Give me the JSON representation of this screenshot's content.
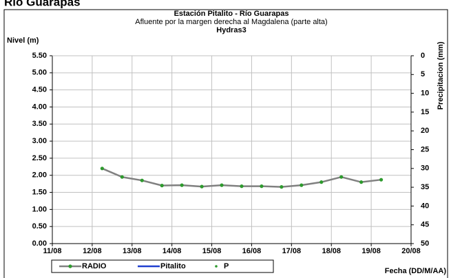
{
  "page_title": "Río Guarapas",
  "chart_data": {
    "type": "line",
    "title": "Estación Pitalito  - Río Guarapas",
    "subtitle": "Afluente por la margen derecha al Magdalena (parte alta)",
    "source": "Hydras3",
    "ylabel": "Nivel (m)",
    "y2label": "Precipitacion (mm)",
    "xlabel": "Fecha (DD/M/AA)",
    "x": [
      1.25,
      1.75,
      2.25,
      2.75,
      3.25,
      3.75,
      4.25,
      4.75,
      5.25,
      5.75,
      6.25,
      6.75,
      7.25,
      7.75,
      8.25
    ],
    "series": [
      {
        "name": "RADIO",
        "color": "#808080",
        "marker_color": "#2e9a2e",
        "values": [
          2.2,
          1.95,
          1.85,
          1.7,
          1.71,
          1.67,
          1.71,
          1.68,
          1.68,
          1.66,
          1.71,
          1.8,
          1.95,
          1.8,
          1.87
        ]
      },
      {
        "name": "Pitalito",
        "color": "#1f3fd0",
        "values": [
          null,
          null,
          null,
          null,
          null,
          null,
          null,
          null,
          null,
          null,
          null,
          null,
          null,
          null,
          null
        ]
      },
      {
        "name": "P",
        "color": "#2e9a2e",
        "axis": "y2",
        "style": "points",
        "values": [
          null,
          null,
          null,
          null,
          null,
          null,
          null,
          null,
          null,
          null,
          null,
          null,
          null,
          null,
          null
        ]
      }
    ],
    "xlim": [
      0,
      9
    ],
    "xticks": [
      {
        "value": 0,
        "label": "11/08"
      },
      {
        "value": 1,
        "label": "12/08"
      },
      {
        "value": 2,
        "label": "13/08"
      },
      {
        "value": 3,
        "label": "14/08"
      },
      {
        "value": 4,
        "label": "15/08"
      },
      {
        "value": 5,
        "label": "16/08"
      },
      {
        "value": 6,
        "label": "17/08"
      },
      {
        "value": 7,
        "label": "18/08"
      },
      {
        "value": 8,
        "label": "19/08"
      },
      {
        "value": 9,
        "label": "20/08"
      }
    ],
    "ylim": [
      0,
      5.5
    ],
    "yticks": [
      {
        "value": 0,
        "label": "0.00"
      },
      {
        "value": 0.5,
        "label": "0.50"
      },
      {
        "value": 1,
        "label": "1.00"
      },
      {
        "value": 1.5,
        "label": "1.50"
      },
      {
        "value": 2,
        "label": "2.00"
      },
      {
        "value": 2.5,
        "label": "2.50"
      },
      {
        "value": 3,
        "label": "3.00"
      },
      {
        "value": 3.5,
        "label": "3.50"
      },
      {
        "value": 4,
        "label": "4.00"
      },
      {
        "value": 4.5,
        "label": "4.50"
      },
      {
        "value": 5,
        "label": "5.00"
      },
      {
        "value": 5.5,
        "label": "5.50"
      }
    ],
    "y2lim": [
      0,
      50
    ],
    "y2_inverted": true,
    "y2ticks": [
      0,
      5,
      10,
      15,
      20,
      25,
      30,
      35,
      40,
      45,
      50
    ],
    "grid": true,
    "legend": "bottom"
  }
}
